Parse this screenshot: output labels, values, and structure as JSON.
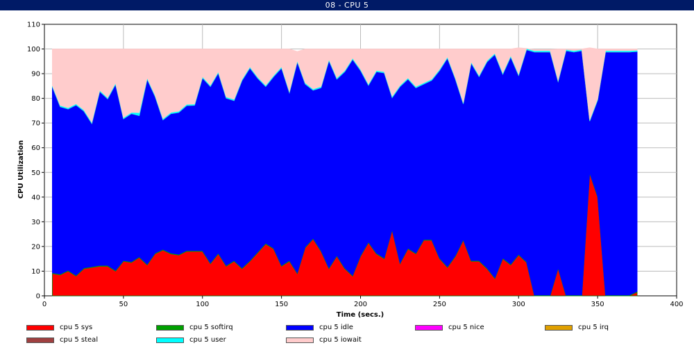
{
  "window": {
    "title": "08 - CPU 5"
  },
  "chart_data": {
    "type": "area",
    "stacked": true,
    "xlabel": "Time (secs.)",
    "ylabel": "CPU Utilization",
    "xlim": [
      0,
      400
    ],
    "ylim": [
      0,
      110
    ],
    "xticks": [
      0,
      50,
      100,
      150,
      200,
      250,
      300,
      350,
      400
    ],
    "yticks": [
      0,
      10,
      20,
      30,
      40,
      50,
      60,
      70,
      80,
      90,
      100,
      110
    ],
    "grid": true,
    "legend_position": "bottom",
    "x": [
      5,
      10,
      15,
      20,
      25,
      30,
      35,
      40,
      45,
      50,
      55,
      60,
      65,
      70,
      75,
      80,
      85,
      90,
      95,
      100,
      105,
      110,
      115,
      120,
      125,
      130,
      135,
      140,
      145,
      150,
      155,
      160,
      165,
      170,
      175,
      180,
      185,
      190,
      195,
      200,
      205,
      210,
      215,
      220,
      225,
      230,
      235,
      240,
      245,
      250,
      255,
      260,
      265,
      270,
      275,
      280,
      285,
      290,
      295,
      300,
      305,
      310,
      315,
      320,
      325,
      330,
      335,
      340,
      345,
      350,
      355,
      360,
      365,
      370,
      375
    ],
    "series": [
      {
        "name": "cpu 5 sys",
        "color": "#ff0000",
        "values": [
          9,
          8.5,
          10,
          8,
          11,
          11.5,
          12,
          12,
          10,
          14,
          13.5,
          15.5,
          12.5,
          17,
          18.5,
          17,
          16.5,
          18,
          18,
          18,
          13,
          17,
          12,
          14,
          11,
          14,
          17.5,
          21,
          19,
          12,
          14,
          9,
          19.5,
          23,
          18,
          11,
          16,
          11,
          8,
          16,
          21.5,
          17,
          15,
          26.5,
          13,
          19,
          17,
          22.5,
          22.5,
          15,
          11.5,
          16,
          22.5,
          14,
          14,
          11,
          7,
          15,
          12.5,
          16.5,
          13.5,
          0,
          0,
          0,
          11,
          0,
          0,
          0,
          49.5,
          40,
          0,
          0,
          0,
          0,
          1.5
        ]
      },
      {
        "name": "cpu 5 softirq",
        "color": "#00a000",
        "values": [
          0.3,
          0.3,
          0.3,
          0.3,
          0.3,
          0.3,
          0.3,
          0.3,
          0.3,
          0.3,
          0.3,
          0.3,
          0.3,
          0.3,
          0.3,
          0.3,
          0.3,
          0.3,
          0.3,
          0.3,
          0.3,
          0.3,
          0.3,
          0.3,
          0.3,
          0.3,
          0.3,
          0.3,
          0.3,
          0.3,
          0.3,
          0.3,
          0.3,
          0.3,
          0.3,
          0.3,
          0.3,
          0.3,
          0.3,
          0.3,
          0.3,
          0.3,
          0.3,
          0.3,
          0.3,
          0.3,
          0.3,
          0.3,
          0.3,
          0.3,
          0.3,
          0.3,
          0.3,
          0.3,
          0.3,
          0.3,
          0.3,
          0.3,
          0.3,
          0.3,
          0.3,
          0.3,
          0.3,
          0.3,
          0.3,
          0.3,
          0.3,
          0.3,
          0.3,
          0.3,
          0.3,
          0.3,
          0.3,
          0.3,
          0.3
        ]
      },
      {
        "name": "cpu 5 idle",
        "color": "#0000ff",
        "values": [
          75.4,
          67.8,
          65.4,
          69,
          63.5,
          58,
          70.5,
          67.5,
          75.4,
          57.4,
          60,
          57.2,
          75,
          63.5,
          52.5,
          56.5,
          57.5,
          58.8,
          58.9,
          70,
          71.5,
          73,
          67.8,
          64.8,
          75.9,
          78,
          70.3,
          63.5,
          69.5,
          80,
          68,
          85.5,
          66,
          60,
          66,
          84,
          71.5,
          79.5,
          87.5,
          75,
          63.5,
          73.5,
          75,
          53.5,
          71.5,
          68.5,
          67,
          63,
          64.5,
          76,
          84.5,
          71.5,
          55,
          80,
          74.5,
          83.5,
          90.5,
          74.5,
          84,
          72.5,
          85.9,
          98.5,
          98.5,
          98.5,
          75.5,
          99,
          98.5,
          99,
          21,
          39,
          98.5,
          98.5,
          98.5,
          98.5,
          97.2
        ]
      },
      {
        "name": "cpu 5 nice",
        "color": "#ff00ff",
        "values": [
          0,
          0,
          0,
          0,
          0,
          0,
          0,
          0,
          0,
          0,
          0,
          0,
          0,
          0,
          0,
          0,
          0,
          0,
          0,
          0,
          0,
          0,
          0,
          0,
          0,
          0,
          0,
          0,
          0,
          0,
          0,
          0,
          0,
          0,
          0,
          0,
          0,
          0,
          0,
          0,
          0,
          0,
          0,
          0,
          0,
          0,
          0,
          0,
          0,
          0,
          0,
          0,
          0,
          0,
          0,
          0,
          0,
          0,
          0,
          0,
          0,
          0,
          0,
          0,
          0,
          0,
          0,
          0,
          0,
          0,
          0,
          0,
          0,
          0,
          0
        ]
      },
      {
        "name": "cpu 5 irq",
        "color": "#e0a000",
        "values": [
          0,
          0,
          0,
          0,
          0,
          0,
          0,
          0,
          0,
          0,
          0,
          0,
          0,
          0,
          0,
          0,
          0,
          0,
          0,
          0,
          0,
          0,
          0,
          0,
          0,
          0,
          0,
          0,
          0,
          0,
          0,
          0,
          0,
          0,
          0,
          0,
          0,
          0,
          0,
          0,
          0,
          0,
          0,
          0,
          0,
          0,
          0,
          0,
          0,
          0,
          0,
          0,
          0,
          0,
          0,
          0,
          0,
          0,
          0,
          0,
          0,
          0,
          0,
          0,
          0,
          0,
          0,
          0,
          0,
          0,
          0,
          0,
          0,
          0,
          0
        ]
      },
      {
        "name": "cpu 5 steal",
        "color": "#a04040",
        "values": [
          0,
          0,
          0,
          0,
          0,
          0,
          0,
          0,
          0,
          0,
          0,
          0,
          0,
          0,
          0,
          0,
          0,
          0,
          0,
          0,
          0,
          0,
          0,
          0,
          0,
          0,
          0,
          0,
          0,
          0,
          0,
          0,
          0,
          0,
          0,
          0,
          0,
          0,
          0,
          0,
          0,
          0,
          0,
          0,
          0,
          0,
          0,
          0,
          0,
          0,
          0,
          0,
          0,
          0,
          0,
          0,
          0,
          0,
          0,
          0,
          0,
          0,
          0,
          0,
          0,
          0,
          0,
          0,
          0,
          0,
          0,
          0,
          0,
          0,
          0
        ]
      },
      {
        "name": "cpu 5 user",
        "color": "#00ffff",
        "values": [
          0.5,
          0.5,
          0.5,
          0.5,
          0.5,
          0.5,
          0.5,
          0.5,
          0.5,
          0.5,
          0.5,
          1.2,
          0.5,
          0.5,
          0.5,
          0.5,
          0.5,
          0.5,
          0.5,
          0.5,
          0.5,
          0.5,
          0.5,
          0.5,
          0.5,
          0.5,
          0.5,
          0.5,
          0.5,
          0.5,
          0.5,
          0.5,
          0.5,
          0.5,
          0.5,
          0.5,
          0.5,
          0.5,
          0.5,
          0.5,
          0.5,
          0.5,
          0.5,
          0.5,
          0.5,
          0.5,
          0.5,
          0.5,
          0.5,
          0.5,
          0.5,
          0.5,
          0.5,
          0.5,
          0.5,
          0.5,
          0.5,
          0.5,
          0.5,
          0.5,
          0.5,
          0.5,
          0.5,
          0.5,
          0.5,
          0.5,
          0.5,
          0.5,
          0.5,
          0.5,
          0.5,
          0.5,
          0.5,
          0.5,
          0.5
        ]
      },
      {
        "name": "cpu 5 iowait",
        "color": "#ffcccc",
        "values": [
          14.8,
          22.9,
          23.8,
          22.2,
          24.7,
          29.7,
          16.7,
          19.7,
          13.8,
          27.8,
          25.7,
          25.8,
          11.7,
          18.7,
          28.2,
          25.7,
          25.2,
          22.4,
          22.3,
          11.2,
          14.7,
          9.2,
          19.4,
          20.4,
          12.3,
          7.2,
          11.4,
          14.7,
          10.7,
          7.2,
          17.2,
          3.7,
          13.7,
          16.2,
          15.2,
          4.2,
          11.7,
          8.7,
          3.7,
          8.2,
          14.2,
          8.7,
          9.2,
          19.2,
          14.7,
          11.7,
          15.2,
          13.7,
          12.2,
          8.2,
          3.2,
          11.7,
          21.7,
          5.2,
          10.7,
          4.7,
          1.7,
          9.7,
          2.7,
          10.7,
          0,
          0.5,
          0.5,
          0.5,
          12.7,
          0.2,
          0.7,
          0.2,
          29.2,
          20.2,
          0.7,
          0.7,
          0.7,
          0.7,
          0.5
        ]
      }
    ]
  }
}
